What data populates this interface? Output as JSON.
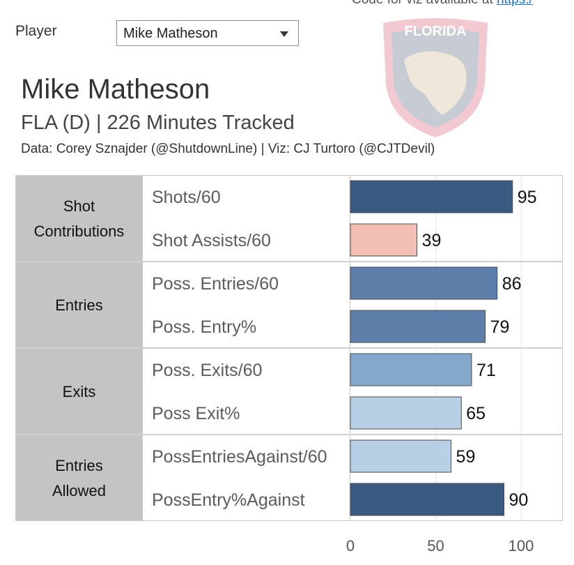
{
  "header": {
    "code_note": "Code for viz available at ",
    "code_link": "https:/",
    "player_label": "Player",
    "player_selected": "Mike Matheson"
  },
  "title": {
    "name": "Mike Matheson",
    "info": "FLA (D) | 226 Minutes Tracked",
    "credits": "Data: Corey Sznajder (@ShutdownLine) | Viz: CJ Turtoro (@CJTDevil)"
  },
  "logo": {
    "text": "FLORIDA"
  },
  "chart_data": {
    "type": "bar",
    "orientation": "horizontal",
    "groups": [
      {
        "label": [
          "Shot",
          "Contributions"
        ],
        "metrics": [
          {
            "name": "Shots/60",
            "value": 95,
            "color": "#3a5a82"
          },
          {
            "name": "Shot Assists/60",
            "value": 39,
            "color": "#f3beb4"
          }
        ]
      },
      {
        "label": [
          "Entries"
        ],
        "metrics": [
          {
            "name": "Poss. Entries/60",
            "value": 86,
            "color": "#5d7fa9"
          },
          {
            "name": "Poss. Entry%",
            "value": 79,
            "color": "#5d7fa9"
          }
        ]
      },
      {
        "label": [
          "Exits"
        ],
        "metrics": [
          {
            "name": "Poss. Exits/60",
            "value": 71,
            "color": "#84a8cc"
          },
          {
            "name": "Poss Exit%",
            "value": 65,
            "color": "#b8d0e6"
          }
        ]
      },
      {
        "label": [
          "Entries",
          "Allowed"
        ],
        "metrics": [
          {
            "name": "PossEntriesAgainst/60",
            "value": 59,
            "color": "#b8d0e6"
          },
          {
            "name": "PossEntry%Against",
            "value": 90,
            "color": "#3a5a82"
          }
        ]
      }
    ],
    "xlim": [
      0,
      100
    ],
    "xticks": [
      "0",
      "50",
      "100"
    ],
    "grid": true
  }
}
